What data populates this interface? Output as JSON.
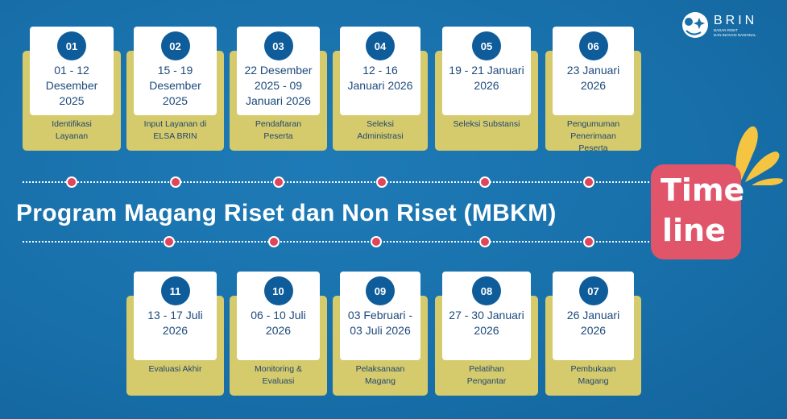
{
  "title": "Program Magang Riset dan Non Riset (MBKM)",
  "badge": {
    "line1": "Time",
    "line2": "line"
  },
  "logo": {
    "name": "BRIN",
    "subtitle_1": "BADAN RISET",
    "subtitle_2": "DAN INOVASI NASIONAL"
  },
  "colors": {
    "background": "#1870aa",
    "card_accent": "#d5cb6c",
    "number_circle": "#0f5c9b",
    "dot": "#e0465a",
    "badge": "#e0556a",
    "splash": "#f5c542"
  },
  "top_steps": [
    {
      "number": "01",
      "date": "01 - 12 Desember 2025",
      "label": "Identifikasi Layanan"
    },
    {
      "number": "02",
      "date": "15 - 19 Desember 2025",
      "label": "Input Layanan di ELSA BRIN"
    },
    {
      "number": "03",
      "date": "22 Desember 2025 - 09 Januari 2026",
      "label": "Pendaftaran Peserta"
    },
    {
      "number": "04",
      "date": "12 - 16 Januari 2026",
      "label": "Seleksi Administrasi"
    },
    {
      "number": "05",
      "date": "19 - 21 Januari 2026",
      "label": "Seleksi Substansi"
    },
    {
      "number": "06",
      "date": "23 Januari 2026",
      "label": "Pengumuman Penerimaan Peserta"
    }
  ],
  "bottom_steps": [
    {
      "number": "11",
      "date": "13 - 17 Juli 2026",
      "label": "Evaluasi Akhir"
    },
    {
      "number": "10",
      "date": "06 - 10 Juli 2026",
      "label": "Monitoring & Evaluasi"
    },
    {
      "number": "09",
      "date": "03 Februari - 03 Juli 2026",
      "label": "Pelaksanaan Magang"
    },
    {
      "number": "08",
      "date": "27 - 30 Januari 2026",
      "label": "Pelatihan Pengantar"
    },
    {
      "number": "07",
      "date": "26 Januari 2026",
      "label": "Pembukaan Magang"
    }
  ]
}
